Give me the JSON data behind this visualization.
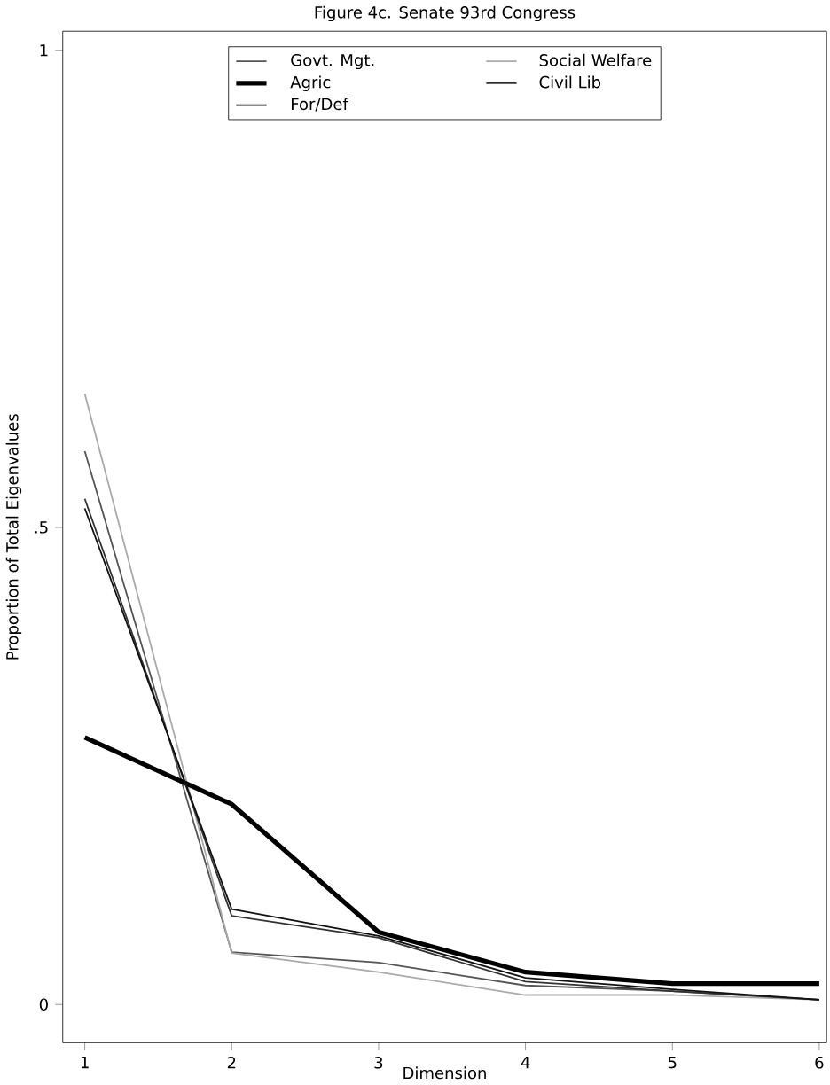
{
  "chart_data": {
    "type": "line",
    "title": "Figure 4c.  Senate 93rd Congress",
    "xlabel": "Dimension",
    "ylabel": "Proportion of Total Eigenvalues",
    "x": [
      1,
      2,
      3,
      4,
      5,
      6
    ],
    "series": [
      {
        "name": "Govt. Mgt.",
        "color": "#555555",
        "values": [
          0.58,
          0.055,
          0.044,
          0.02,
          0.014,
          0.005
        ]
      },
      {
        "name": "Agric",
        "color": "#000000",
        "values": [
          0.28,
          0.21,
          0.076,
          0.034,
          0.022,
          0.022
        ]
      },
      {
        "name": "For/Def",
        "color": "#111111",
        "values": [
          0.52,
          0.1,
          0.072,
          0.028,
          0.016,
          0.005
        ]
      },
      {
        "name": "Social Welfare",
        "color": "#aaaaaa",
        "values": [
          0.64,
          0.054,
          0.034,
          0.01,
          0.01,
          0.005
        ]
      },
      {
        "name": "Civil Lib",
        "color": "#333333",
        "values": [
          0.53,
          0.093,
          0.07,
          0.024,
          0.014,
          0.005
        ]
      }
    ],
    "xlim": [
      0.85,
      6.05
    ],
    "ylim": [
      -0.04,
      1.02
    ],
    "xticks": [
      1,
      2,
      3,
      4,
      5,
      6
    ],
    "yticks": [
      0,
      {
        "value": 0.5,
        "label": ".5"
      },
      1
    ],
    "grid": false,
    "legend": "top",
    "marker": "none",
    "line_style": "solid"
  }
}
